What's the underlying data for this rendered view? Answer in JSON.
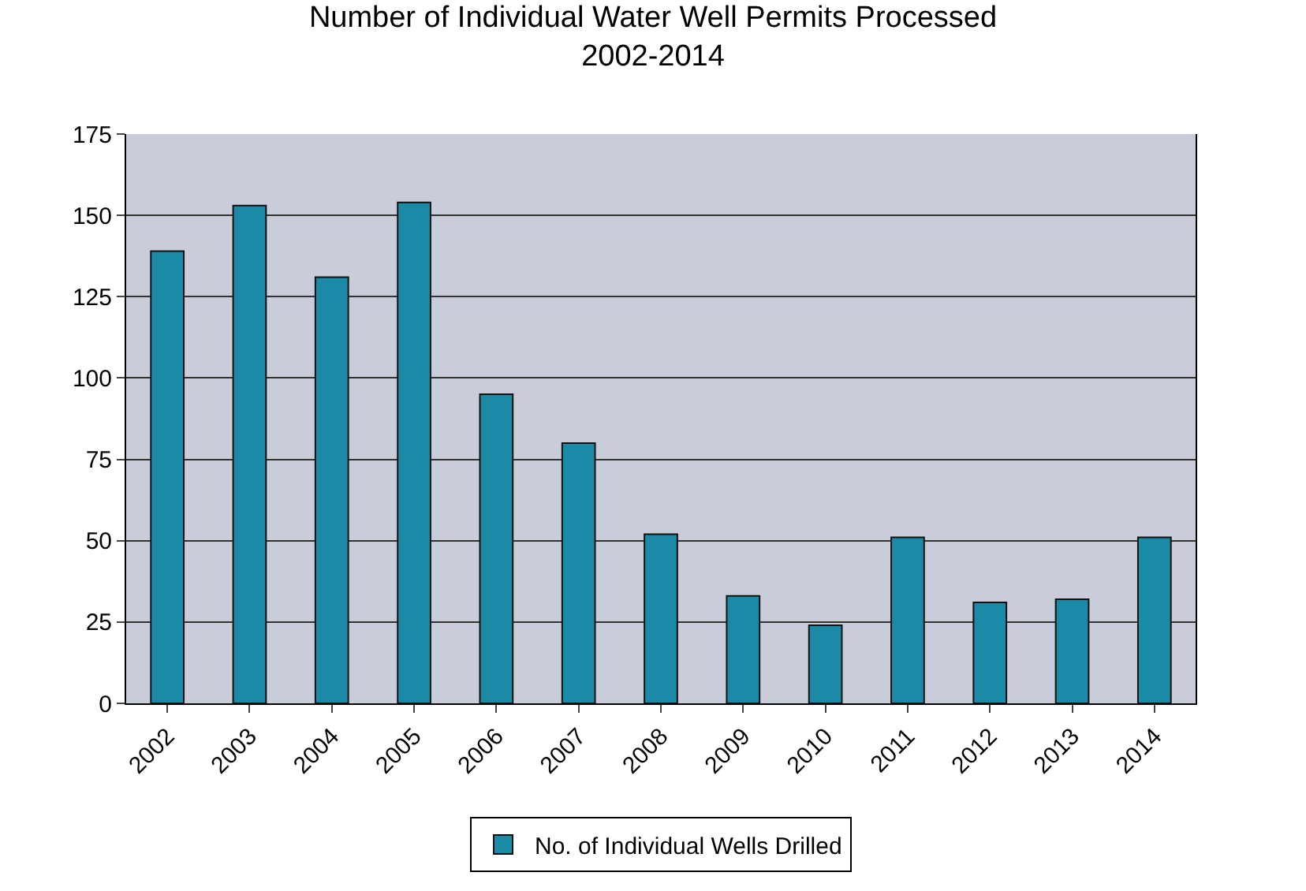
{
  "chart_data": {
    "type": "bar",
    "title": "Number of Individual Water Well Permits Processed\n2002-2014",
    "categories": [
      "2002",
      "2003",
      "2004",
      "2005",
      "2006",
      "2007",
      "2008",
      "2009",
      "2010",
      "2011",
      "2012",
      "2013",
      "2014"
    ],
    "series": [
      {
        "name": "No. of Individual Wells Drilled",
        "color": "#1a8aa6",
        "values": [
          139,
          153,
          131,
          154,
          95,
          80,
          52,
          33,
          24,
          51,
          31,
          32,
          51
        ]
      }
    ],
    "ylim": [
      0,
      175
    ],
    "yticks": [
      0,
      25,
      50,
      75,
      100,
      125,
      150,
      175
    ],
    "grid": "y",
    "legend": "bottom"
  }
}
